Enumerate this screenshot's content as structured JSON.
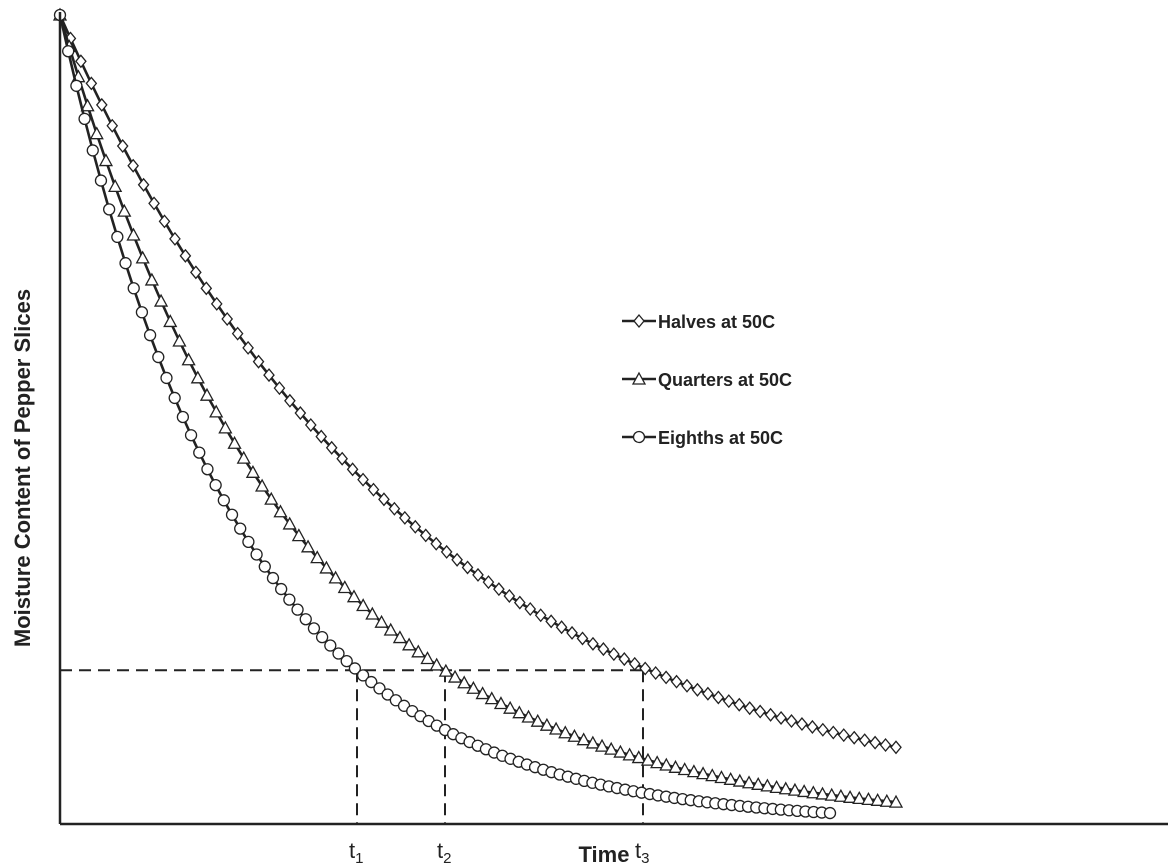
{
  "chart_data": {
    "type": "line",
    "xlabel": "Time",
    "ylabel": "Moisture Content of Pepper Slices",
    "xlim": [
      0,
      100
    ],
    "ylim": [
      0,
      1
    ],
    "x_tick_labels": [
      {
        "base": "t",
        "sub": "1",
        "x": 27
      },
      {
        "base": "t",
        "sub": "2",
        "x": 35
      },
      {
        "base": "t",
        "sub": "3",
        "x": 53
      }
    ],
    "reference_level": 0.19,
    "legend_position": "center-right",
    "series": [
      {
        "name": "Halves at 50C",
        "marker": "diamond",
        "rate": 0.031,
        "x_end": 76,
        "points": 81
      },
      {
        "name": "Quarters at 50C",
        "marker": "triangle",
        "rate": 0.0475,
        "x_end": 76,
        "points": 92
      },
      {
        "name": "Eighths at 50C",
        "marker": "circle",
        "rate": 0.0615,
        "x_end": 70,
        "points": 95
      }
    ],
    "line_color": "#222222"
  }
}
